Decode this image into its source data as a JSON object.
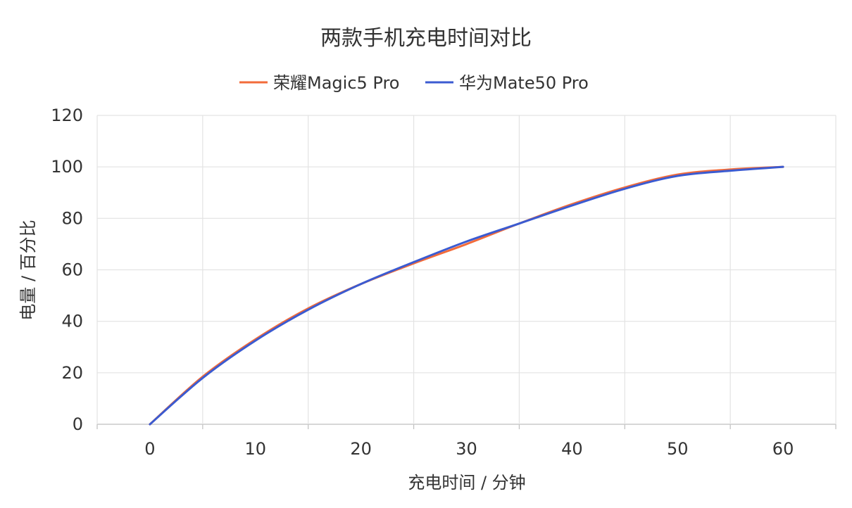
{
  "chart_data": {
    "type": "line",
    "title": "两款手机充电时间对比",
    "xlabel": "充电时间 / 分钟",
    "ylabel": "电量 / 百分比",
    "xlim": [
      -5,
      65
    ],
    "ylim": [
      0,
      120
    ],
    "xticks": [
      0,
      10,
      20,
      30,
      40,
      50,
      60
    ],
    "yticks": [
      0,
      20,
      40,
      60,
      80,
      100,
      120
    ],
    "grid": true,
    "legend_position": "top-center",
    "series": [
      {
        "name": "荣耀Magic5 Pro",
        "color": "#f26b3a",
        "points": [
          [
            0,
            0
          ],
          [
            5,
            18.5
          ],
          [
            10,
            33
          ],
          [
            15,
            45
          ],
          [
            20,
            54.5
          ],
          [
            25,
            62.5
          ],
          [
            30,
            70
          ],
          [
            35,
            78
          ],
          [
            40,
            85.5
          ],
          [
            45,
            92
          ],
          [
            50,
            97
          ],
          [
            55,
            99
          ],
          [
            60,
            100
          ]
        ]
      },
      {
        "name": "华为Mate50 Pro",
        "color": "#3b5bd1",
        "points": [
          [
            0,
            0
          ],
          [
            5,
            18
          ],
          [
            10,
            32.5
          ],
          [
            15,
            44.5
          ],
          [
            20,
            54.5
          ],
          [
            25,
            63
          ],
          [
            30,
            71
          ],
          [
            35,
            78
          ],
          [
            40,
            85
          ],
          [
            45,
            91.5
          ],
          [
            50,
            96.5
          ],
          [
            55,
            98.5
          ],
          [
            60,
            100
          ]
        ]
      }
    ]
  }
}
